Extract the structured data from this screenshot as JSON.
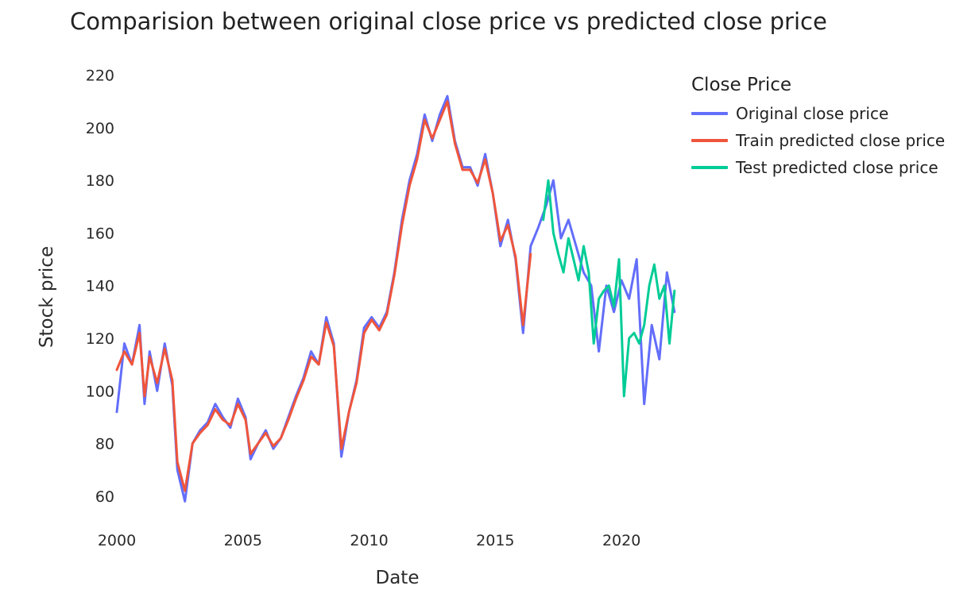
{
  "chart_data": {
    "type": "line",
    "title": "Comparision between original close price vs predicted close price",
    "xlabel": "Date",
    "ylabel": "Stock price",
    "xlim": [
      2000.0,
      2022.2
    ],
    "ylim": [
      53,
      222
    ],
    "x_ticks": [
      2000,
      2005,
      2010,
      2015,
      2020
    ],
    "x_tick_labels": [
      "2000",
      "2005",
      "2010",
      "2015",
      "2020"
    ],
    "y_ticks": [
      60,
      80,
      100,
      120,
      140,
      160,
      180,
      200,
      220
    ],
    "y_tick_labels": [
      "60",
      "80",
      "100",
      "120",
      "140",
      "160",
      "180",
      "200",
      "220"
    ],
    "grid": false,
    "legend": {
      "title": "Close Price",
      "placement": "top-right"
    },
    "series": [
      {
        "name": "Original close price",
        "color": "#636efa",
        "x": [
          2000.0,
          2000.3,
          2000.6,
          2000.9,
          2001.1,
          2001.3,
          2001.6,
          2001.9,
          2002.2,
          2002.4,
          2002.7,
          2003.0,
          2003.3,
          2003.6,
          2003.9,
          2004.2,
          2004.5,
          2004.8,
          2005.1,
          2005.3,
          2005.6,
          2005.9,
          2006.2,
          2006.5,
          2006.8,
          2007.1,
          2007.4,
          2007.7,
          2008.0,
          2008.3,
          2008.6,
          2008.9,
          2009.2,
          2009.5,
          2009.8,
          2010.1,
          2010.4,
          2010.7,
          2011.0,
          2011.3,
          2011.6,
          2011.9,
          2012.2,
          2012.5,
          2012.8,
          2013.1,
          2013.4,
          2013.7,
          2014.0,
          2014.3,
          2014.6,
          2014.9,
          2015.2,
          2015.5,
          2015.8,
          2016.1,
          2016.4,
          2016.7,
          2017.0,
          2017.3,
          2017.6,
          2017.9,
          2018.2,
          2018.5,
          2018.8,
          2019.1,
          2019.4,
          2019.7,
          2020.0,
          2020.3,
          2020.6,
          2020.9,
          2021.2,
          2021.5,
          2021.8,
          2022.1
        ],
        "y": [
          92,
          118,
          110,
          125,
          95,
          115,
          100,
          118,
          102,
          70,
          58,
          80,
          85,
          88,
          95,
          90,
          86,
          97,
          90,
          74,
          80,
          85,
          78,
          82,
          90,
          98,
          105,
          115,
          110,
          128,
          118,
          75,
          92,
          104,
          124,
          128,
          124,
          130,
          145,
          165,
          180,
          190,
          205,
          195,
          205,
          212,
          195,
          185,
          185,
          178,
          190,
          175,
          155,
          165,
          150,
          122,
          155,
          162,
          170,
          180,
          158,
          165,
          155,
          145,
          140,
          115,
          140,
          130,
          142,
          135,
          150,
          95,
          125,
          112,
          145,
          130
        ],
        "width": 3
      },
      {
        "name": "Train predicted close price",
        "color": "#ef553b",
        "x": [
          2000.0,
          2000.3,
          2000.6,
          2000.9,
          2001.1,
          2001.3,
          2001.6,
          2001.9,
          2002.2,
          2002.4,
          2002.7,
          2003.0,
          2003.3,
          2003.6,
          2003.9,
          2004.2,
          2004.5,
          2004.8,
          2005.1,
          2005.3,
          2005.6,
          2005.9,
          2006.2,
          2006.5,
          2006.8,
          2007.1,
          2007.4,
          2007.7,
          2008.0,
          2008.3,
          2008.6,
          2008.9,
          2009.2,
          2009.5,
          2009.8,
          2010.1,
          2010.4,
          2010.7,
          2011.0,
          2011.3,
          2011.6,
          2011.9,
          2012.2,
          2012.5,
          2012.8,
          2013.1,
          2013.4,
          2013.7,
          2014.0,
          2014.3,
          2014.6,
          2014.9,
          2015.2,
          2015.5,
          2015.8,
          2016.1,
          2016.4
        ],
        "y": [
          108,
          115,
          110,
          122,
          98,
          113,
          103,
          116,
          104,
          73,
          62,
          80,
          84,
          87,
          93,
          89,
          87,
          95,
          89,
          76,
          80,
          84,
          79,
          82,
          89,
          97,
          104,
          113,
          110,
          126,
          117,
          78,
          92,
          103,
          122,
          127,
          123,
          129,
          144,
          163,
          178,
          188,
          203,
          196,
          203,
          210,
          194,
          184,
          184,
          179,
          188,
          175,
          157,
          163,
          151,
          125,
          152
        ],
        "width": 3
      },
      {
        "name": "Test predicted close price",
        "color": "#00cc96",
        "x": [
          2016.9,
          2017.1,
          2017.3,
          2017.5,
          2017.7,
          2017.9,
          2018.1,
          2018.3,
          2018.5,
          2018.7,
          2018.9,
          2019.1,
          2019.3,
          2019.5,
          2019.7,
          2019.9,
          2020.1,
          2020.3,
          2020.5,
          2020.7,
          2020.9,
          2021.1,
          2021.3,
          2021.5,
          2021.7,
          2021.9,
          2022.1
        ],
        "y": [
          165,
          180,
          160,
          152,
          145,
          158,
          150,
          142,
          155,
          145,
          118,
          135,
          138,
          140,
          132,
          150,
          98,
          120,
          122,
          118,
          125,
          140,
          148,
          135,
          140,
          118,
          138
        ],
        "width": 3
      }
    ]
  }
}
